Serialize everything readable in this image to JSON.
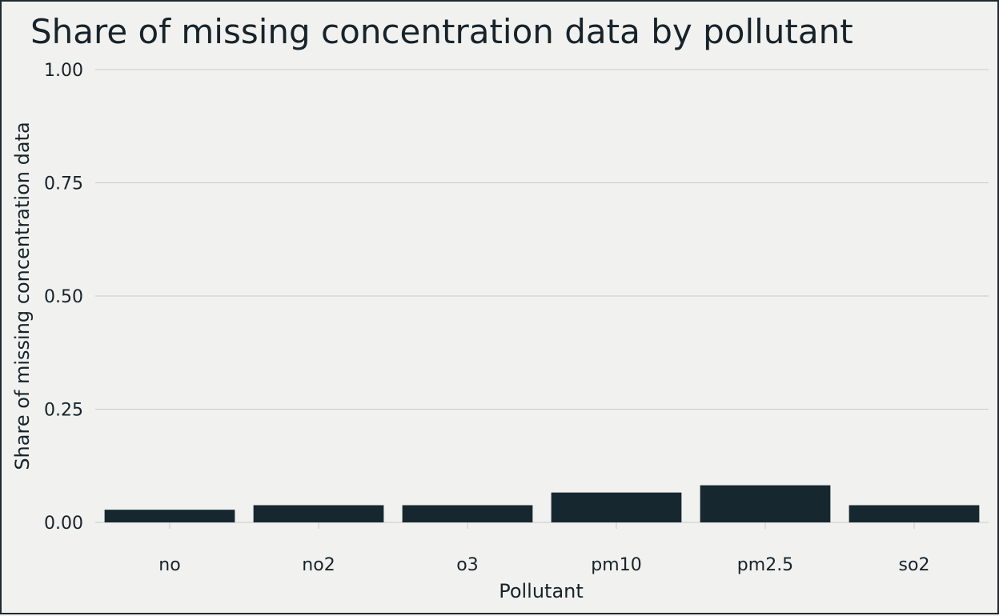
{
  "chart_data": {
    "type": "bar",
    "title": "Share of missing concentration data by pollutant",
    "xlabel": "Pollutant",
    "ylabel": "Share of missing concentration data",
    "categories": [
      "no",
      "no2",
      "o3",
      "pm10",
      "pm2.5",
      "so2"
    ],
    "values": [
      0.028,
      0.038,
      0.038,
      0.066,
      0.082,
      0.038
    ],
    "ylim": [
      0,
      1
    ],
    "yticks": [
      0,
      0.25,
      0.5,
      0.75,
      1
    ],
    "ytick_labels": [
      "0.00",
      "0.25",
      "0.50",
      "0.75",
      "1.00"
    ],
    "grid": true,
    "legend": "none"
  },
  "colors": {
    "background": "#f1f2ef",
    "bar": "#17272f",
    "text": "#17232b",
    "grid": "#c8cac8"
  }
}
